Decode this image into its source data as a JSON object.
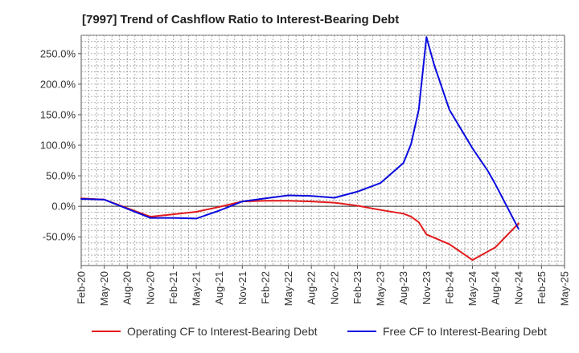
{
  "chart_data": {
    "type": "line",
    "title": "[7997]  Trend of Cashflow Ratio to Interest-Bearing Debt",
    "xlabel": "",
    "ylabel": "",
    "x_ticks": [
      "Feb-20",
      "May-20",
      "Aug-20",
      "Nov-20",
      "Feb-21",
      "May-21",
      "Aug-21",
      "Nov-21",
      "Feb-22",
      "May-22",
      "Aug-22",
      "Nov-22",
      "Feb-23",
      "May-23",
      "Aug-23",
      "Nov-23",
      "Feb-24",
      "May-24",
      "Aug-24",
      "Nov-24",
      "Feb-25",
      "May-25"
    ],
    "y_ticks": [
      {
        "value": 250,
        "label": "250.0%"
      },
      {
        "value": 200,
        "label": "200.0%"
      },
      {
        "value": 150,
        "label": "150.0%"
      },
      {
        "value": 100,
        "label": "100.0%"
      },
      {
        "value": 50,
        "label": "50.0%"
      },
      {
        "value": 0,
        "label": "0.0%"
      },
      {
        "value": -50,
        "label": "-50.0%"
      }
    ],
    "ylim": [
      -97,
      280
    ],
    "grid": true,
    "legend_position": "bottom",
    "series": [
      {
        "name": "Operating CF to Interest-Bearing Debt",
        "color": "#e31a1c",
        "points": [
          [
            "Feb-20",
            13
          ],
          [
            "May-20",
            11
          ],
          [
            "Aug-20",
            -3
          ],
          [
            "Nov-20",
            -17
          ],
          [
            "Feb-21",
            -13
          ],
          [
            "May-21",
            -9
          ],
          [
            "Aug-21",
            -1
          ],
          [
            "Nov-21",
            8
          ],
          [
            "Feb-22",
            9
          ],
          [
            "May-22",
            9
          ],
          [
            "Aug-22",
            8
          ],
          [
            "Nov-22",
            6
          ],
          [
            "Feb-23",
            1
          ],
          [
            "May-23",
            -6
          ],
          [
            "Aug-23",
            -12
          ],
          [
            "Sep-23",
            -17
          ],
          [
            "Oct-23",
            -26
          ],
          [
            "Nov-23",
            -46
          ],
          [
            "Feb-24",
            -62
          ],
          [
            "May-24",
            -88
          ],
          [
            "Aug-24",
            -67
          ],
          [
            "Nov-24",
            -28
          ]
        ]
      },
      {
        "name": "Free CF to Interest-Bearing Debt",
        "color": "#0a0ae0",
        "points": [
          [
            "Feb-20",
            12
          ],
          [
            "May-20",
            11
          ],
          [
            "Aug-20",
            -4
          ],
          [
            "Nov-20",
            -19
          ],
          [
            "Feb-21",
            -19
          ],
          [
            "May-21",
            -20
          ],
          [
            "Aug-21",
            -7
          ],
          [
            "Nov-21",
            8
          ],
          [
            "Feb-22",
            13
          ],
          [
            "May-22",
            18
          ],
          [
            "Aug-22",
            17
          ],
          [
            "Nov-22",
            14
          ],
          [
            "Feb-23",
            24
          ],
          [
            "May-23",
            38
          ],
          [
            "Aug-23",
            71
          ],
          [
            "Sep-23",
            102
          ],
          [
            "Oct-23",
            158
          ],
          [
            "Nov-23",
            277
          ],
          [
            "Dec-23",
            232
          ],
          [
            "Feb-24",
            158
          ],
          [
            "May-24",
            95
          ],
          [
            "Jul-24",
            58
          ],
          [
            "Aug-24",
            36
          ],
          [
            "Nov-24",
            -37
          ]
        ]
      }
    ]
  }
}
